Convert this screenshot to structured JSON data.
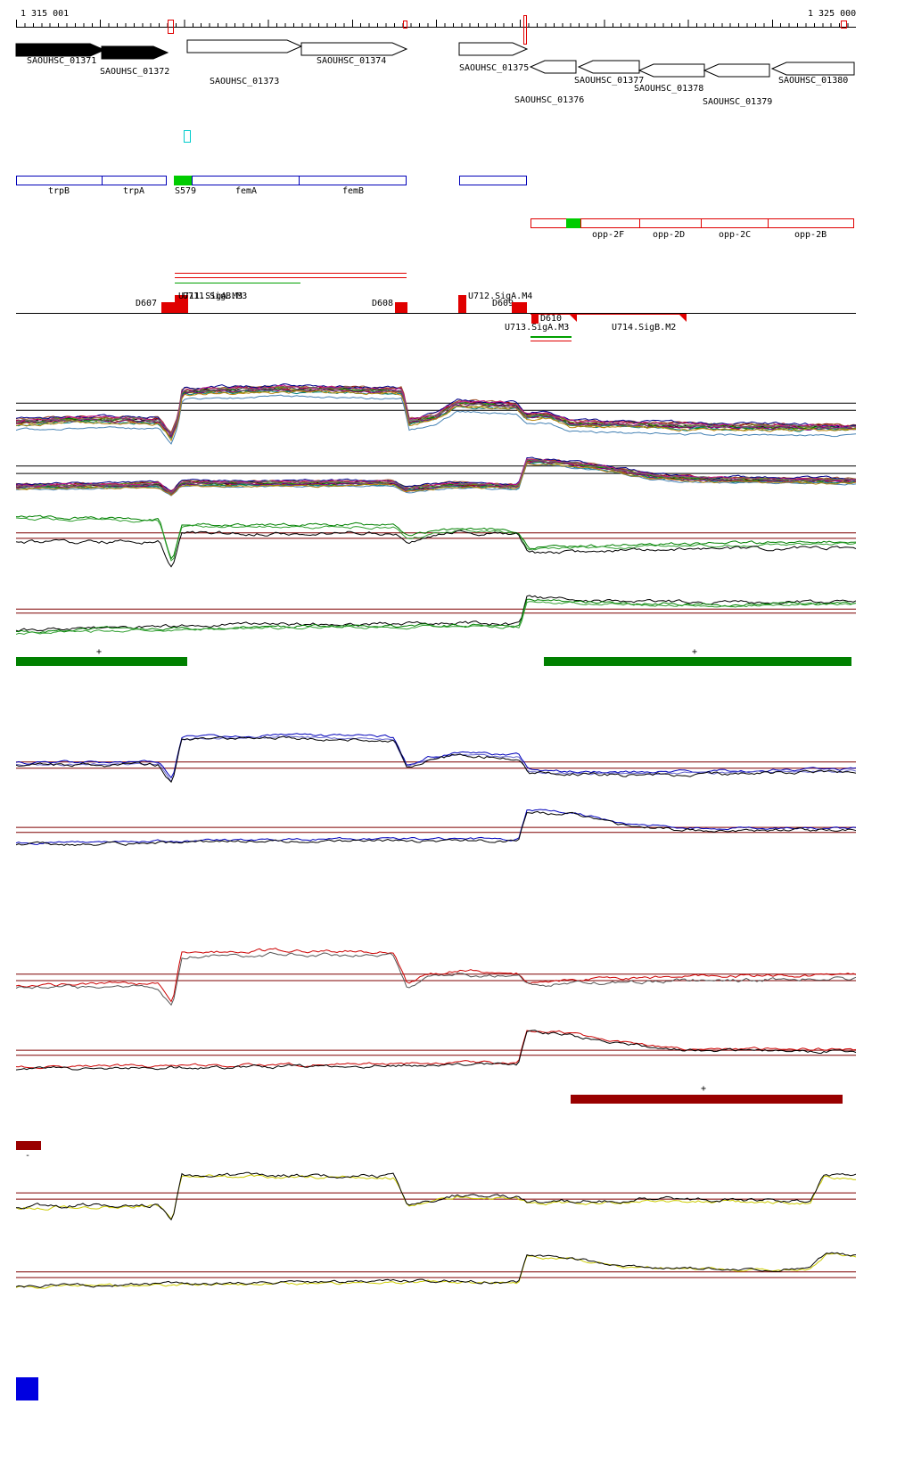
{
  "ruler": {
    "start_label": "1 315 001",
    "end_label": "1 325 000"
  },
  "genes": {
    "items": [
      {
        "label": "SAOUHSC_01371"
      },
      {
        "label": "SAOUHSC_01372"
      },
      {
        "label": "SAOUHSC_01373"
      },
      {
        "label": "SAOUHSC_01374"
      },
      {
        "label": "SAOUHSC_01375"
      },
      {
        "label": "SAOUHSC_01376"
      },
      {
        "label": "SAOUHSC_01377"
      },
      {
        "label": "SAOUHSC_01378"
      },
      {
        "label": "SAOUHSC_01379"
      },
      {
        "label": "SAOUHSC_01380"
      }
    ]
  },
  "annotations_blue": {
    "items": [
      {
        "label": "trpB"
      },
      {
        "label": "trpA"
      },
      {
        "label": "S579"
      },
      {
        "label": "femA"
      },
      {
        "label": "femB"
      }
    ]
  },
  "annotations_red": {
    "items": [
      {
        "label": "opp-2F"
      },
      {
        "label": "opp-2D"
      },
      {
        "label": "opp-2C"
      },
      {
        "label": "opp-2B"
      }
    ]
  },
  "markers": {
    "d607": "D607",
    "u711a": "U711.SigA.M3",
    "u711b": "U711.SigB.M3",
    "d608": "D608",
    "u712": "U712.SigA.M4",
    "d609": "D609",
    "d610": "D610",
    "u713": "U713.SigA.M3",
    "u714": "U714.SigB.M2"
  },
  "strand_bars": {
    "plus": "+",
    "minus": "-"
  },
  "colors": {
    "gene_fill": "#000000",
    "annotation_blue": "#0000b8",
    "annotation_red": "#e00000",
    "highlight_green": "#00cc00",
    "bar_green": "#008000",
    "bar_darkred": "#990000",
    "cyan_marker": "#00cccc",
    "blue_square": "#0000e0",
    "ref_line_dark_red": "#7f0000"
  },
  "chart_data": [
    {
      "id": "mix-forward",
      "name": "all-probe-signals-forward",
      "type": "line",
      "x_range": [
        1315001,
        1325000
      ],
      "ref_lines": [
        {
          "y": 0.34,
          "color": "#000000"
        },
        {
          "y": 0.44,
          "color": "#000000"
        }
      ],
      "profile": [
        [
          0,
          0.6
        ],
        [
          0.08,
          0.56
        ],
        [
          0.17,
          0.58
        ],
        [
          0.185,
          0.8
        ],
        [
          0.193,
          0.55
        ],
        [
          0.198,
          0.17
        ],
        [
          0.32,
          0.13
        ],
        [
          0.46,
          0.16
        ],
        [
          0.468,
          0.6
        ],
        [
          0.5,
          0.52
        ],
        [
          0.525,
          0.34
        ],
        [
          0.595,
          0.37
        ],
        [
          0.607,
          0.52
        ],
        [
          0.635,
          0.5
        ],
        [
          0.66,
          0.62
        ],
        [
          0.82,
          0.66
        ],
        [
          1,
          0.68
        ]
      ],
      "series": [
        {
          "name": "black",
          "color": "#000000",
          "offset": 0.0,
          "noise": 0.1
        },
        {
          "name": "darkred",
          "color": "#8b0000",
          "offset": -0.02,
          "noise": 0.1
        },
        {
          "name": "firebrick",
          "color": "#b22222",
          "offset": 0.02,
          "noise": 0.1
        },
        {
          "name": "sienna",
          "color": "#a0522d",
          "offset": -0.03,
          "noise": 0.1
        },
        {
          "name": "olive",
          "color": "#808000",
          "offset": 0.03,
          "noise": 0.1
        },
        {
          "name": "olivedrab",
          "color": "#6b8e23",
          "offset": -0.01,
          "noise": 0.1
        },
        {
          "name": "green",
          "color": "#008000",
          "offset": 0.01,
          "noise": 0.1
        },
        {
          "name": "teal",
          "color": "#008080",
          "offset": 0.04,
          "noise": 0.1
        },
        {
          "name": "steelblue",
          "color": "#4682b4",
          "offset": 0.12,
          "noise": 0.08
        },
        {
          "name": "navy",
          "color": "#00008b",
          "offset": -0.04,
          "noise": 0.1
        },
        {
          "name": "purple",
          "color": "#800080",
          "offset": 0.02,
          "noise": 0.1
        },
        {
          "name": "magenta",
          "color": "#c71585",
          "offset": -0.02,
          "noise": 0.1
        },
        {
          "name": "goldenrod",
          "color": "#b8860b",
          "offset": 0.05,
          "noise": 0.1
        },
        {
          "name": "gray",
          "color": "#696969",
          "offset": 0.0,
          "noise": 0.12
        }
      ]
    },
    {
      "id": "mix-reverse",
      "name": "all-probe-signals-reverse",
      "type": "line",
      "x_range": [
        1315001,
        1325000
      ],
      "ref_lines": [
        {
          "y": 0.2,
          "color": "#000000"
        },
        {
          "y": 0.33,
          "color": "#000000"
        }
      ],
      "profile": [
        [
          0,
          0.55
        ],
        [
          0.17,
          0.52
        ],
        [
          0.185,
          0.68
        ],
        [
          0.196,
          0.5
        ],
        [
          0.45,
          0.49
        ],
        [
          0.465,
          0.6
        ],
        [
          0.52,
          0.52
        ],
        [
          0.598,
          0.55
        ],
        [
          0.608,
          0.1
        ],
        [
          0.645,
          0.13
        ],
        [
          0.7,
          0.22
        ],
        [
          0.76,
          0.38
        ],
        [
          0.83,
          0.43
        ],
        [
          1,
          0.45
        ]
      ],
      "series": [
        {
          "name": "black",
          "color": "#000000",
          "offset": 0.0,
          "noise": 0.1
        },
        {
          "name": "darkred",
          "color": "#8b0000",
          "offset": -0.02,
          "noise": 0.1
        },
        {
          "name": "firebrick",
          "color": "#b22222",
          "offset": 0.02,
          "noise": 0.1
        },
        {
          "name": "sienna",
          "color": "#a0522d",
          "offset": -0.03,
          "noise": 0.1
        },
        {
          "name": "olive",
          "color": "#808000",
          "offset": 0.03,
          "noise": 0.1
        },
        {
          "name": "olivedrab",
          "color": "#6b8e23",
          "offset": -0.01,
          "noise": 0.1
        },
        {
          "name": "green",
          "color": "#008000",
          "offset": 0.01,
          "noise": 0.1
        },
        {
          "name": "teal",
          "color": "#008080",
          "offset": 0.04,
          "noise": 0.1
        },
        {
          "name": "steelblue",
          "color": "#4682b4",
          "offset": 0.06,
          "noise": 0.08
        },
        {
          "name": "navy",
          "color": "#00008b",
          "offset": -0.04,
          "noise": 0.1
        },
        {
          "name": "purple",
          "color": "#800080",
          "offset": 0.02,
          "noise": 0.1
        },
        {
          "name": "magenta",
          "color": "#c71585",
          "offset": -0.02,
          "noise": 0.1
        },
        {
          "name": "goldenrod",
          "color": "#b8860b",
          "offset": 0.05,
          "noise": 0.1
        },
        {
          "name": "gray",
          "color": "#696969",
          "offset": 0.0,
          "noise": 0.12
        }
      ]
    },
    {
      "id": "green-forward",
      "name": "condition-green-forward",
      "type": "line",
      "x_range": [
        1315001,
        1325000
      ],
      "ref_lines": [
        {
          "y": 0.34,
          "color": "#7f0000"
        },
        {
          "y": 0.42,
          "color": "#7f0000"
        }
      ],
      "series": [
        {
          "name": "green1",
          "color": "#008000",
          "noise": 0.12,
          "offset": 0,
          "profile": [
            [
              0,
              0.1
            ],
            [
              0.17,
              0.13
            ],
            [
              0.186,
              0.78
            ],
            [
              0.197,
              0.22
            ],
            [
              0.45,
              0.22
            ],
            [
              0.466,
              0.4
            ],
            [
              0.5,
              0.32
            ],
            [
              0.527,
              0.27
            ],
            [
              0.598,
              0.3
            ],
            [
              0.61,
              0.55
            ],
            [
              0.78,
              0.5
            ],
            [
              1,
              0.47
            ]
          ]
        },
        {
          "name": "green2",
          "color": "#32a032",
          "noise": 0.1,
          "offset": 0.03,
          "profile": [
            [
              0,
              0.1
            ],
            [
              0.17,
              0.13
            ],
            [
              0.186,
              0.78
            ],
            [
              0.197,
              0.22
            ],
            [
              0.45,
              0.22
            ],
            [
              0.466,
              0.4
            ],
            [
              0.5,
              0.32
            ],
            [
              0.527,
              0.27
            ],
            [
              0.598,
              0.3
            ],
            [
              0.61,
              0.55
            ],
            [
              0.78,
              0.5
            ],
            [
              1,
              0.47
            ]
          ]
        },
        {
          "name": "black",
          "color": "#000000",
          "noise": 0.14,
          "offset": 0,
          "profile": [
            [
              0,
              0.48
            ],
            [
              0.17,
              0.47
            ],
            [
              0.186,
              0.86
            ],
            [
              0.197,
              0.34
            ],
            [
              0.45,
              0.34
            ],
            [
              0.466,
              0.46
            ],
            [
              0.53,
              0.32
            ],
            [
              0.598,
              0.36
            ],
            [
              0.61,
              0.64
            ],
            [
              0.82,
              0.58
            ],
            [
              1,
              0.56
            ]
          ]
        }
      ]
    },
    {
      "id": "green-reverse",
      "name": "condition-green-reverse",
      "type": "line",
      "x_range": [
        1315001,
        1325000
      ],
      "ref_lines": [
        {
          "y": 0.41,
          "color": "#7f0000"
        },
        {
          "y": 0.47,
          "color": "#7f0000"
        }
      ],
      "profile": [
        [
          0,
          0.72
        ],
        [
          0.15,
          0.67
        ],
        [
          0.35,
          0.63
        ],
        [
          0.55,
          0.62
        ],
        [
          0.6,
          0.63
        ],
        [
          0.608,
          0.24
        ],
        [
          0.68,
          0.28
        ],
        [
          0.85,
          0.31
        ],
        [
          1,
          0.29
        ]
      ],
      "series": [
        {
          "name": "black",
          "color": "#000000",
          "noise": 0.14,
          "offset": 0
        },
        {
          "name": "green1",
          "color": "#008000",
          "noise": 0.12,
          "offset": 0.03
        },
        {
          "name": "green2",
          "color": "#32a032",
          "noise": 0.1,
          "offset": 0.05
        }
      ]
    },
    {
      "id": "blue-forward",
      "name": "condition-blue-forward",
      "type": "line",
      "x_range": [
        1315001,
        1325000
      ],
      "ref_lines": [
        {
          "y": 0.51,
          "color": "#7f0000"
        },
        {
          "y": 0.6,
          "color": "#7f0000"
        }
      ],
      "profile": [
        [
          0,
          0.52
        ],
        [
          0.17,
          0.51
        ],
        [
          0.186,
          0.78
        ],
        [
          0.197,
          0.15
        ],
        [
          0.32,
          0.12
        ],
        [
          0.45,
          0.15
        ],
        [
          0.466,
          0.56
        ],
        [
          0.49,
          0.44
        ],
        [
          0.525,
          0.37
        ],
        [
          0.598,
          0.41
        ],
        [
          0.61,
          0.62
        ],
        [
          0.72,
          0.66
        ],
        [
          0.88,
          0.63
        ],
        [
          1,
          0.61
        ]
      ],
      "series": [
        {
          "name": "blue1",
          "color": "#0000bb",
          "noise": 0.1,
          "offset": 0
        },
        {
          "name": "blue2",
          "color": "#6666cc",
          "noise": 0.08,
          "offset": 0.03
        },
        {
          "name": "black",
          "color": "#000000",
          "noise": 0.13,
          "offset": 0.04
        }
      ]
    },
    {
      "id": "blue-reverse",
      "name": "condition-blue-reverse",
      "type": "line",
      "x_range": [
        1315001,
        1325000
      ],
      "ref_lines": [
        {
          "y": 0.43,
          "color": "#7f0000"
        },
        {
          "y": 0.51,
          "color": "#7f0000"
        }
      ],
      "profile": [
        [
          0,
          0.68
        ],
        [
          0.2,
          0.64
        ],
        [
          0.45,
          0.61
        ],
        [
          0.598,
          0.62
        ],
        [
          0.608,
          0.15
        ],
        [
          0.66,
          0.19
        ],
        [
          0.73,
          0.38
        ],
        [
          0.82,
          0.45
        ],
        [
          1,
          0.44
        ]
      ],
      "series": [
        {
          "name": "blue1",
          "color": "#0000bb",
          "noise": 0.1,
          "offset": 0
        },
        {
          "name": "black",
          "color": "#000000",
          "noise": 0.13,
          "offset": 0.03
        }
      ]
    },
    {
      "id": "red-forward",
      "name": "condition-red-forward",
      "type": "line",
      "x_range": [
        1315001,
        1325000
      ],
      "ref_lines": [
        {
          "y": 0.48,
          "color": "#7f0000"
        },
        {
          "y": 0.565,
          "color": "#7f0000"
        }
      ],
      "profile": [
        [
          0,
          0.62
        ],
        [
          0.17,
          0.6
        ],
        [
          0.186,
          0.84
        ],
        [
          0.197,
          0.2
        ],
        [
          0.32,
          0.16
        ],
        [
          0.45,
          0.19
        ],
        [
          0.466,
          0.6
        ],
        [
          0.49,
          0.49
        ],
        [
          0.525,
          0.43
        ],
        [
          0.598,
          0.47
        ],
        [
          0.61,
          0.58
        ],
        [
          0.72,
          0.53
        ],
        [
          0.88,
          0.5
        ],
        [
          1,
          0.49
        ]
      ],
      "series": [
        {
          "name": "red",
          "color": "#cc0000",
          "noise": 0.11,
          "offset": 0
        },
        {
          "name": "gray",
          "color": "#555555",
          "noise": 0.13,
          "offset": 0.05
        }
      ]
    },
    {
      "id": "red-reverse",
      "name": "condition-red-reverse",
      "type": "line",
      "x_range": [
        1315001,
        1325000
      ],
      "ref_lines": [
        {
          "y": 0.43,
          "color": "#7f0000"
        },
        {
          "y": 0.51,
          "color": "#7f0000"
        }
      ],
      "profile": [
        [
          0,
          0.7
        ],
        [
          0.3,
          0.66
        ],
        [
          0.55,
          0.63
        ],
        [
          0.598,
          0.64
        ],
        [
          0.608,
          0.1
        ],
        [
          0.65,
          0.14
        ],
        [
          0.71,
          0.28
        ],
        [
          0.8,
          0.4
        ],
        [
          1,
          0.42
        ]
      ],
      "series": [
        {
          "name": "red",
          "color": "#cc0000",
          "noise": 0.11,
          "offset": 0
        },
        {
          "name": "black",
          "color": "#000000",
          "noise": 0.13,
          "offset": 0.03
        }
      ]
    },
    {
      "id": "yellow-forward",
      "name": "condition-yellow-forward",
      "type": "line",
      "x_range": [
        1315001,
        1325000
      ],
      "ref_lines": [
        {
          "y": 0.41,
          "color": "#7f0000"
        },
        {
          "y": 0.49,
          "color": "#7f0000"
        }
      ],
      "profile": [
        [
          0,
          0.58
        ],
        [
          0.17,
          0.56
        ],
        [
          0.186,
          0.75
        ],
        [
          0.197,
          0.18
        ],
        [
          0.45,
          0.2
        ],
        [
          0.466,
          0.56
        ],
        [
          0.525,
          0.44
        ],
        [
          0.598,
          0.47
        ],
        [
          0.61,
          0.53
        ],
        [
          0.78,
          0.49
        ],
        [
          0.945,
          0.52
        ],
        [
          0.962,
          0.18
        ],
        [
          1,
          0.2
        ]
      ],
      "series": [
        {
          "name": "yellow",
          "color": "#cccc00",
          "noise": 0.11,
          "offset": 0.02
        },
        {
          "name": "black",
          "color": "#000000",
          "noise": 0.13,
          "offset": 0
        }
      ]
    },
    {
      "id": "yellow-reverse",
      "name": "condition-yellow-reverse",
      "type": "line",
      "x_range": [
        1315001,
        1325000
      ],
      "ref_lines": [
        {
          "y": 0.44,
          "color": "#7f0000"
        },
        {
          "y": 0.53,
          "color": "#7f0000"
        }
      ],
      "profile": [
        [
          0,
          0.66
        ],
        [
          0.25,
          0.62
        ],
        [
          0.5,
          0.58
        ],
        [
          0.598,
          0.6
        ],
        [
          0.608,
          0.18
        ],
        [
          0.66,
          0.22
        ],
        [
          0.73,
          0.34
        ],
        [
          0.86,
          0.4
        ],
        [
          0.945,
          0.38
        ],
        [
          0.965,
          0.15
        ],
        [
          1,
          0.17
        ]
      ],
      "series": [
        {
          "name": "yellow",
          "color": "#cccc00",
          "noise": 0.11,
          "offset": 0.02
        },
        {
          "name": "black",
          "color": "#000000",
          "noise": 0.13,
          "offset": 0
        }
      ]
    }
  ]
}
